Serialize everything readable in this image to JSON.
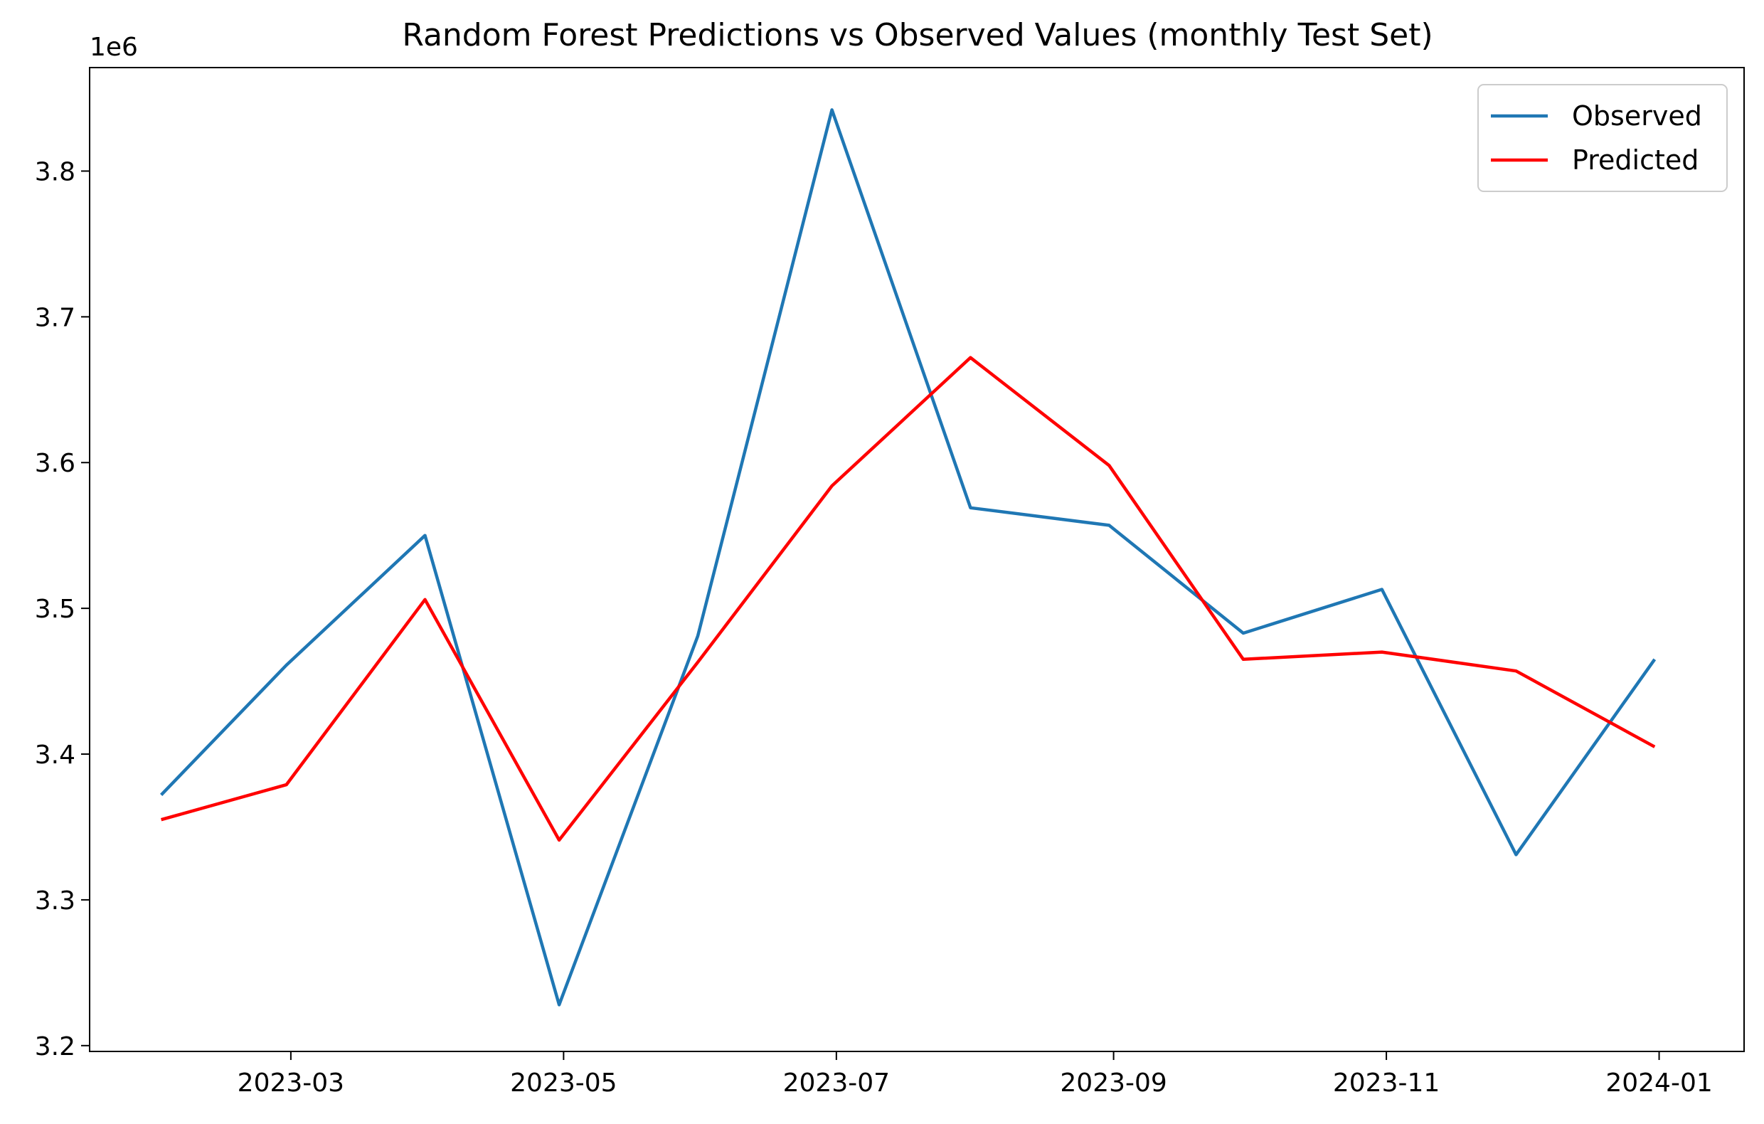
{
  "chart_data": {
    "type": "line",
    "title": "Random Forest Predictions vs Observed Values (monthly Test Set)",
    "xlabel": "",
    "ylabel": "",
    "y_offset_label": "1e6",
    "y_scale_factor": 1000000,
    "x": [
      "2023-01-31",
      "2023-02-28",
      "2023-03-31",
      "2023-04-30",
      "2023-05-31",
      "2023-06-30",
      "2023-07-31",
      "2023-08-31",
      "2023-09-30",
      "2023-10-31",
      "2023-11-30",
      "2023-12-31"
    ],
    "x_ticks": [
      "2023-03",
      "2023-05",
      "2023-07",
      "2023-09",
      "2023-11",
      "2024-01"
    ],
    "y_ticks": [
      3.2,
      3.3,
      3.4,
      3.5,
      3.6,
      3.7,
      3.8
    ],
    "xlim": [
      "2023-01-15",
      "2024-01-20"
    ],
    "ylim": [
      3.196,
      3.871
    ],
    "grid": false,
    "legend_position": "top-right",
    "series": [
      {
        "name": "Observed",
        "color": "#1f77b4",
        "values": [
          3.372,
          3.461,
          3.55,
          3.228,
          3.481,
          3.842,
          3.569,
          3.557,
          3.483,
          3.513,
          3.331,
          3.465
        ]
      },
      {
        "name": "Predicted",
        "color": "#ff0000",
        "values": [
          3.355,
          3.379,
          3.506,
          3.341,
          3.463,
          3.584,
          3.672,
          3.598,
          3.465,
          3.47,
          3.457,
          3.405
        ]
      }
    ]
  }
}
